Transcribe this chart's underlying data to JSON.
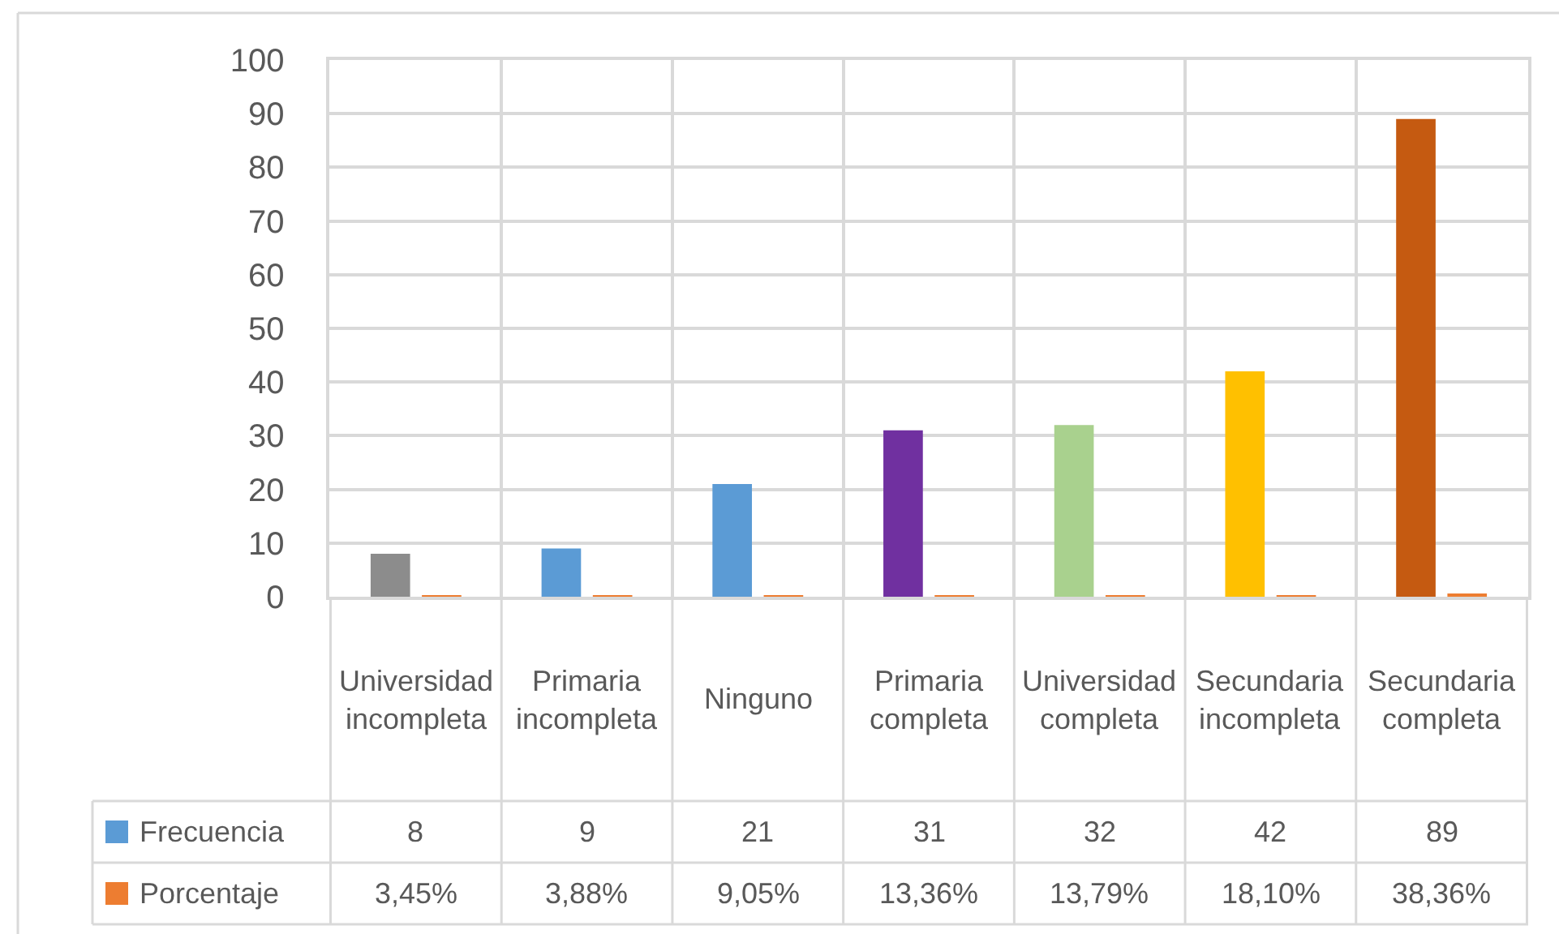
{
  "chart_data": {
    "type": "bar",
    "categories": [
      "Universidad incompleta",
      "Primaria incompleta",
      "Ninguno",
      "Primaria completa",
      "Universidad completa",
      "Secundaria incompleta",
      "Secundaria completa"
    ],
    "series": [
      {
        "name": "Frecuencia",
        "color": "#5b9bd5",
        "colors": [
          "#8c8c8c",
          "#5b9bd5",
          "#5b9bd5",
          "#7030a0",
          "#a9d18e",
          "#ffc000",
          "#c55a11"
        ],
        "values": [
          8,
          9,
          21,
          31,
          32,
          42,
          89
        ],
        "value_labels": [
          "8",
          "9",
          "21",
          "31",
          "32",
          "42",
          "89"
        ]
      },
      {
        "name": "Porcentaje",
        "color": "#ed7d31",
        "values": [
          0.0345,
          0.0388,
          0.0905,
          0.1336,
          0.1379,
          0.181,
          0.3836
        ],
        "value_labels": [
          "3,45%",
          "3,88%",
          "9,05%",
          "13,36%",
          "13,79%",
          "18,10%",
          "38,36%"
        ]
      }
    ],
    "ylim": [
      0,
      100
    ],
    "yticks": [
      0,
      10,
      20,
      30,
      40,
      50,
      60,
      70,
      80,
      90,
      100
    ],
    "grid": true,
    "legend": "bottom left"
  }
}
